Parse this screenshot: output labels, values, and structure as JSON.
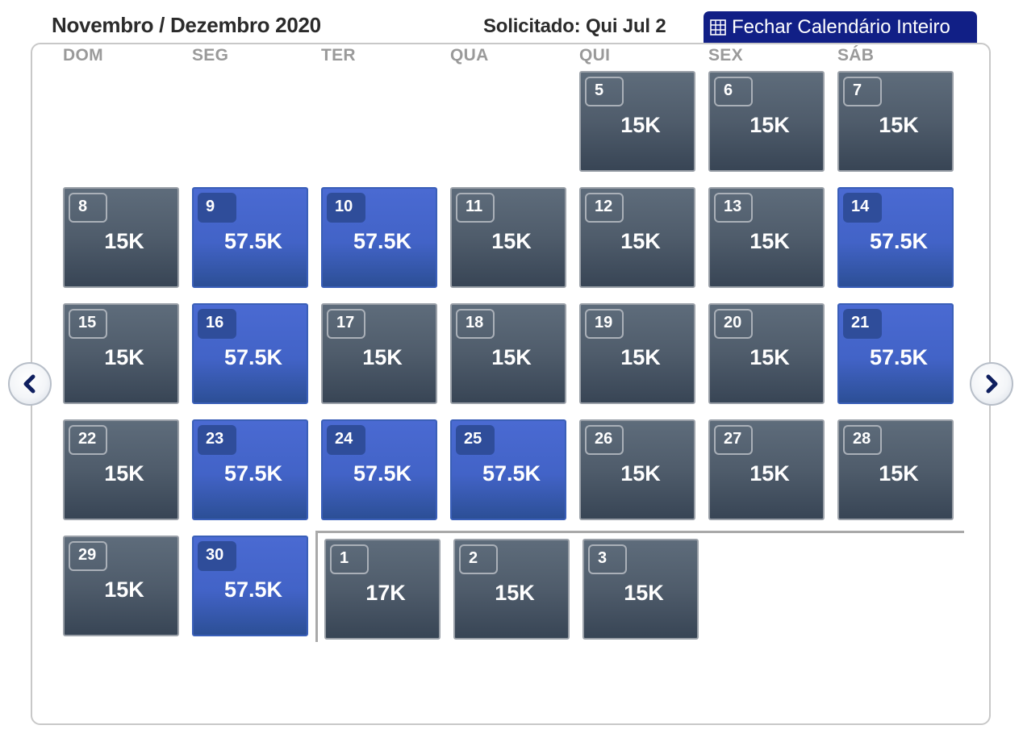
{
  "header": {
    "title": "Novembro / Dezembro 2020",
    "requested": "Solicitado: Qui Jul 2",
    "close_button": {
      "label": "Fechar Calendário Inteiro",
      "icon": "grid-icon"
    }
  },
  "weekdays": [
    "DOM",
    "SEG",
    "TER",
    "QUA",
    "QUI",
    "SEX",
    "SÁB"
  ],
  "colors": {
    "standard_cell": "#4f5c6b",
    "premium_cell": "#4263c7",
    "close_button": "#111f86"
  },
  "navigation": {
    "prev_icon": "chevron-left-icon",
    "next_icon": "chevron-right-icon"
  },
  "months": [
    {
      "name": "Novembro",
      "days": [
        {
          "day": "5",
          "price": "15K",
          "style": "standard"
        },
        {
          "day": "6",
          "price": "15K",
          "style": "standard"
        },
        {
          "day": "7",
          "price": "15K",
          "style": "standard"
        },
        {
          "day": "8",
          "price": "15K",
          "style": "standard"
        },
        {
          "day": "9",
          "price": "57.5K",
          "style": "premium"
        },
        {
          "day": "10",
          "price": "57.5K",
          "style": "premium"
        },
        {
          "day": "11",
          "price": "15K",
          "style": "standard"
        },
        {
          "day": "12",
          "price": "15K",
          "style": "standard"
        },
        {
          "day": "13",
          "price": "15K",
          "style": "standard"
        },
        {
          "day": "14",
          "price": "57.5K",
          "style": "premium"
        },
        {
          "day": "15",
          "price": "15K",
          "style": "standard"
        },
        {
          "day": "16",
          "price": "57.5K",
          "style": "premium"
        },
        {
          "day": "17",
          "price": "15K",
          "style": "standard"
        },
        {
          "day": "18",
          "price": "15K",
          "style": "standard"
        },
        {
          "day": "19",
          "price": "15K",
          "style": "standard"
        },
        {
          "day": "20",
          "price": "15K",
          "style": "standard"
        },
        {
          "day": "21",
          "price": "57.5K",
          "style": "premium"
        },
        {
          "day": "22",
          "price": "15K",
          "style": "standard"
        },
        {
          "day": "23",
          "price": "57.5K",
          "style": "premium"
        },
        {
          "day": "24",
          "price": "57.5K",
          "style": "premium"
        },
        {
          "day": "25",
          "price": "57.5K",
          "style": "premium"
        },
        {
          "day": "26",
          "price": "15K",
          "style": "standard"
        },
        {
          "day": "27",
          "price": "15K",
          "style": "standard"
        },
        {
          "day": "28",
          "price": "15K",
          "style": "standard"
        },
        {
          "day": "29",
          "price": "15K",
          "style": "standard"
        },
        {
          "day": "30",
          "price": "57.5K",
          "style": "premium"
        }
      ]
    },
    {
      "name": "Dezembro",
      "days": [
        {
          "day": "1",
          "price": "17K",
          "style": "standard"
        },
        {
          "day": "2",
          "price": "15K",
          "style": "standard"
        },
        {
          "day": "3",
          "price": "15K",
          "style": "standard"
        }
      ]
    }
  ]
}
